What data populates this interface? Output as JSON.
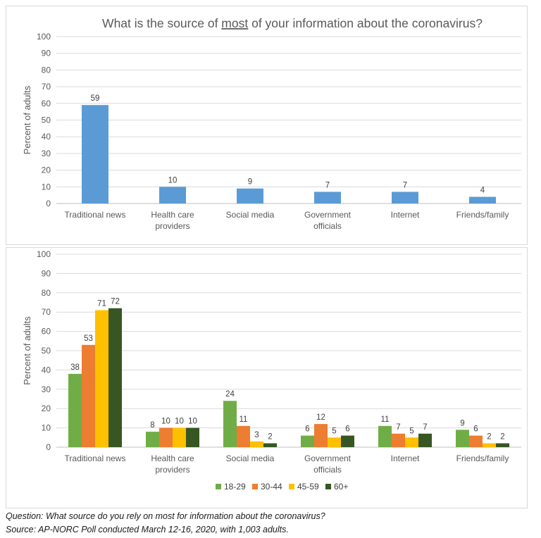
{
  "footer": {
    "question": "Question: What source do you rely on most for information about the coronavirus?",
    "source": "Source: AP-NORC Poll conducted March 12-16, 2020, with 1,003 adults."
  },
  "chart_data": [
    {
      "type": "bar",
      "title_before": "What is the source of ",
      "title_emphasis": "most",
      "title_after": " of your information about the coronavirus?",
      "ylabel": "Percent of adults",
      "ylim": [
        0,
        100
      ],
      "yticks": [
        0,
        10,
        20,
        30,
        40,
        50,
        60,
        70,
        80,
        90,
        100
      ],
      "grid": true,
      "categories": [
        [
          "Traditional news"
        ],
        [
          "Health care",
          "providers"
        ],
        [
          "Social media"
        ],
        [
          "Government",
          "officials"
        ],
        [
          "Internet"
        ],
        [
          "Friends/family"
        ]
      ],
      "series": [
        {
          "values": [
            59,
            10,
            9,
            7,
            7,
            4
          ],
          "color": "#5b9bd5"
        }
      ]
    },
    {
      "type": "bar",
      "ylabel": "Percent of adults",
      "ylim": [
        0,
        100
      ],
      "yticks": [
        0,
        10,
        20,
        30,
        40,
        50,
        60,
        70,
        80,
        90,
        100
      ],
      "grid": true,
      "legend": "bottom",
      "categories": [
        [
          "Traditional news"
        ],
        [
          "Health care",
          "providers"
        ],
        [
          "Social media"
        ],
        [
          "Government",
          "officials"
        ],
        [
          "Internet"
        ],
        [
          "Friends/family"
        ]
      ],
      "series": [
        {
          "name": "18-29",
          "values": [
            38,
            8,
            24,
            6,
            11,
            9
          ],
          "color": "#70ad47"
        },
        {
          "name": "30-44",
          "values": [
            53,
            10,
            11,
            12,
            7,
            6
          ],
          "color": "#ed7d31"
        },
        {
          "name": "45-59",
          "values": [
            71,
            10,
            3,
            5,
            5,
            2
          ],
          "color": "#ffc000"
        },
        {
          "name": "60+",
          "values": [
            72,
            10,
            2,
            6,
            7,
            2
          ],
          "color": "#375623"
        }
      ]
    }
  ]
}
